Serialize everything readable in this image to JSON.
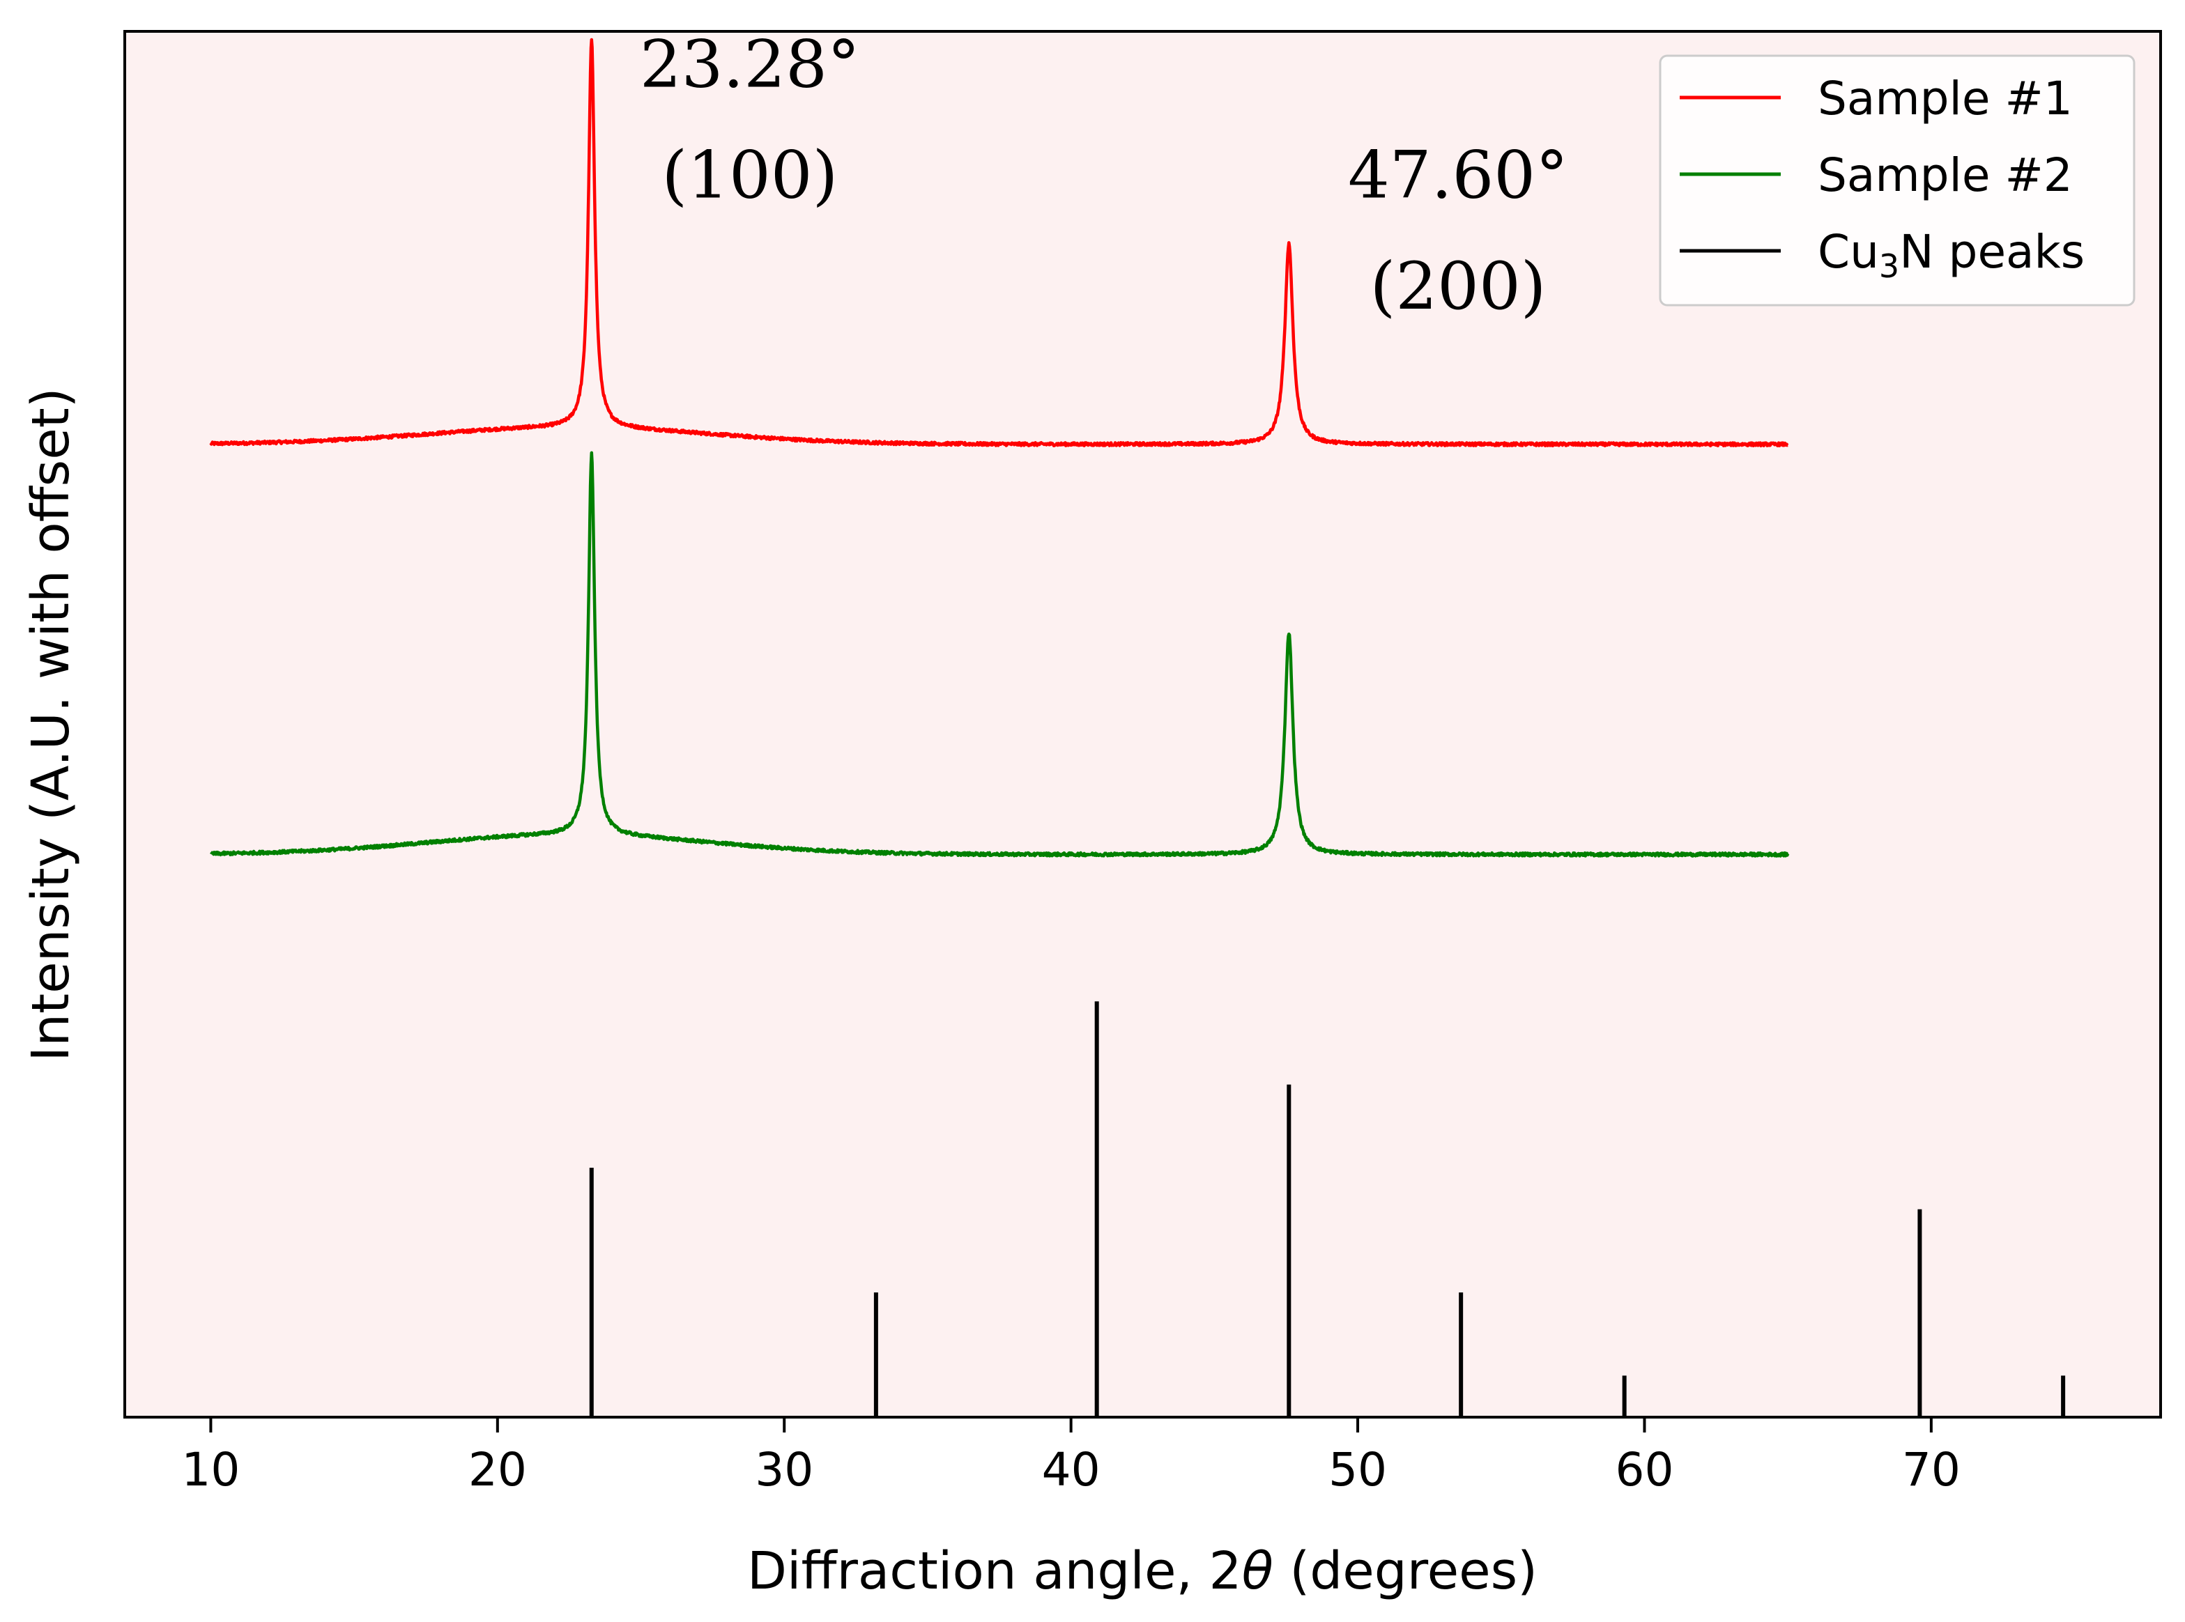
{
  "chart_data": {
    "type": "line",
    "xlabel_prefix": "Diffraction angle, 2",
    "xlabel_symbol": "θ",
    "xlabel_suffix": " (degrees)",
    "ylabel": "Intensity (A.U. with offset)",
    "xlim": [
      7,
      78
    ],
    "ylim": [
      0,
      100
    ],
    "xticks": [
      10,
      20,
      30,
      40,
      50,
      60,
      70
    ],
    "grid": false,
    "background": "#fdf1f1",
    "legend_position": "top-right",
    "legend": [
      {
        "label_main": "Sample #1",
        "label_sub": "",
        "label_tail": "",
        "color": "#ff0000"
      },
      {
        "label_main": "Sample #2",
        "label_sub": "",
        "label_tail": "",
        "color": "#008000"
      },
      {
        "label_main": "Cu",
        "label_sub": "3",
        "label_tail": "N peaks",
        "color": "#000000"
      }
    ],
    "series": [
      {
        "name": "Sample #1",
        "color": "#ff0000",
        "x_range": [
          10,
          65
        ],
        "baseline": 70.2,
        "hump": {
          "center": 22.5,
          "height": 1.2,
          "width": 7
        },
        "peaks": [
          {
            "x": 23.28,
            "height": 28,
            "width": 0.13
          },
          {
            "x": 47.6,
            "height": 14.5,
            "width": 0.17
          }
        ]
      },
      {
        "name": "Sample #2",
        "color": "#008000",
        "x_range": [
          10,
          65
        ],
        "baseline": 40.6,
        "hump": {
          "center": 22.5,
          "height": 1.4,
          "width": 7
        },
        "peaks": [
          {
            "x": 23.28,
            "height": 27.5,
            "width": 0.13
          },
          {
            "x": 47.6,
            "height": 16,
            "width": 0.17
          }
        ]
      },
      {
        "name": "Cu3N peaks",
        "color": "#000000",
        "type": "stick",
        "x": [
          23.28,
          33.2,
          40.9,
          47.6,
          53.6,
          59.3,
          69.6,
          74.6
        ],
        "y": [
          18,
          9,
          30,
          24,
          9,
          3,
          15,
          3
        ]
      }
    ],
    "annotations": [
      {
        "text": "23.28°",
        "x": 28.8,
        "y": 96
      },
      {
        "text": "(100)",
        "x": 28.8,
        "y": 88
      },
      {
        "text": "47.60°",
        "x": 53.5,
        "y": 88
      },
      {
        "text": "(200)",
        "x": 53.5,
        "y": 80
      }
    ]
  }
}
